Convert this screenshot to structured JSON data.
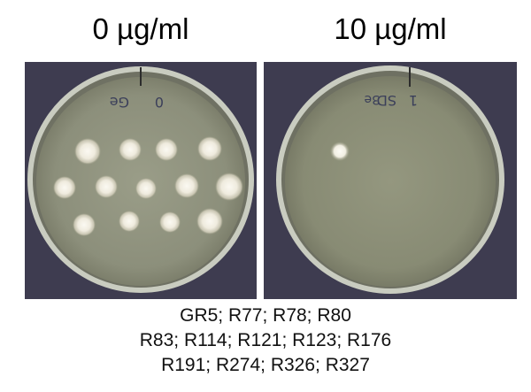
{
  "panels": [
    {
      "concentration_label": "0 µg/ml",
      "plate_marking": "Ge 0"
    },
    {
      "concentration_label": "10 µg/ml",
      "plate_marking": "SD 1 3e"
    }
  ],
  "caption_lines": [
    "GR5; R77; R78; R80",
    "R83; R114; R121; R123; R176",
    "R191; R274; R326; R327"
  ],
  "colors": {
    "background": "#3e3c50",
    "agar": "#8c8f7b",
    "colony": "#f2efe6"
  }
}
